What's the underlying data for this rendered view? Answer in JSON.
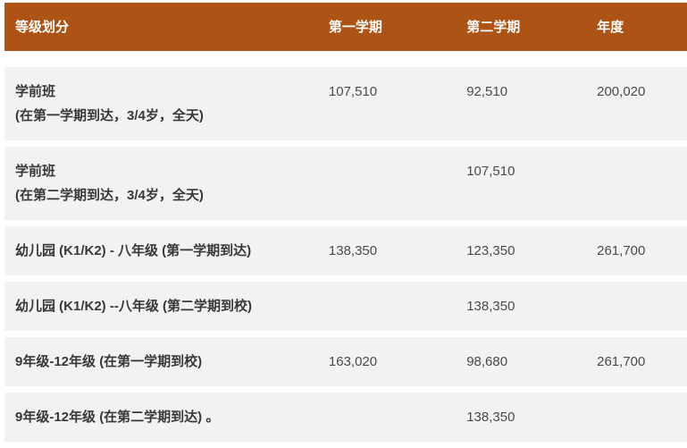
{
  "table": {
    "header": {
      "columns": [
        "等级划分",
        "第一学期",
        "第二学期",
        "年度"
      ]
    },
    "rows": [
      {
        "label_line1": "学前班",
        "label_line2": "(在第一学期到达，3/4岁，全天)",
        "sem1": "107,510",
        "sem2": "92,510",
        "annual": "200,020"
      },
      {
        "label_line1": "学前班",
        "label_line2": "(在第二学期到达，3/4岁，全天)",
        "sem1": "",
        "sem2": "107,510",
        "annual": ""
      },
      {
        "label_line1": "幼儿园 (K1/K2) - 八年级 (第一学期到达)",
        "label_line2": "",
        "sem1": "138,350",
        "sem2": "123,350",
        "annual": "261,700"
      },
      {
        "label_line1": "幼儿园 (K1/K2) --八年级 (第二学期到校)",
        "label_line2": "",
        "sem1": "",
        "sem2": "138,350",
        "annual": ""
      },
      {
        "label_line1": "9年级-12年级 (在第一学期到校)",
        "label_line2": "",
        "sem1": "163,020",
        "sem2": "98,680",
        "annual": "261,700"
      },
      {
        "label_line1": "9年级-12年级 (在第二学期到达) 。",
        "label_line2": "",
        "sem1": "",
        "sem2": "138,350",
        "annual": ""
      }
    ],
    "colors": {
      "header_bg": "#ac5315",
      "header_text": "#ffffff",
      "row_bg": "#f2f2f0",
      "label_text": "#383838",
      "value_text": "#4a4a4a"
    }
  }
}
